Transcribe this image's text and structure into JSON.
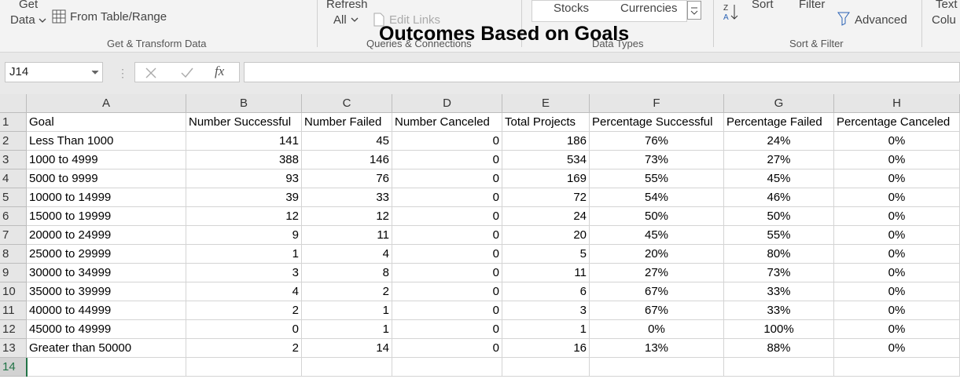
{
  "ribbon": {
    "get": "Get",
    "data": "Data",
    "from_table": "From Table/Range",
    "group_get": "Get & Transform Data",
    "refresh": "Refresh",
    "all": "All",
    "edit_links": "Edit Links",
    "group_queries": "Queries & Connections",
    "stocks": "Stocks",
    "currencies": "Currencies",
    "group_types": "Data Types",
    "sort": "Sort",
    "filter": "Filter",
    "advanced": "Advanced",
    "group_sort": "Sort & Filter",
    "text": "Text",
    "colu": "Colu"
  },
  "title": "Outcomes Based on Goals",
  "name_box": "J14",
  "formula_icon": "fx",
  "sheet": {
    "columns": [
      "A",
      "B",
      "C",
      "D",
      "E",
      "F",
      "G",
      "H"
    ],
    "row_numbers": [
      1,
      2,
      3,
      4,
      5,
      6,
      7,
      8,
      9,
      10,
      11,
      12,
      13,
      14
    ],
    "rows": [
      [
        "Goal",
        "Number Successful",
        "Number Failed",
        "Number Canceled",
        "Total Projects",
        "Percentage Successful",
        "Percentage Failed",
        "Percentage Canceled"
      ],
      [
        "Less Than 1000",
        "141",
        "45",
        "0",
        "186",
        "76%",
        "24%",
        "0%"
      ],
      [
        "1000 to 4999",
        "388",
        "146",
        "0",
        "534",
        "73%",
        "27%",
        "0%"
      ],
      [
        "5000 to 9999",
        "93",
        "76",
        "0",
        "169",
        "55%",
        "45%",
        "0%"
      ],
      [
        "10000 to 14999",
        "39",
        "33",
        "0",
        "72",
        "54%",
        "46%",
        "0%"
      ],
      [
        "15000 to 19999",
        "12",
        "12",
        "0",
        "24",
        "50%",
        "50%",
        "0%"
      ],
      [
        "20000 to 24999",
        "9",
        "11",
        "0",
        "20",
        "45%",
        "55%",
        "0%"
      ],
      [
        "25000 to 29999",
        "1",
        "4",
        "0",
        "5",
        "20%",
        "80%",
        "0%"
      ],
      [
        "30000 to 34999",
        "3",
        "8",
        "0",
        "11",
        "27%",
        "73%",
        "0%"
      ],
      [
        "35000 to 39999",
        "4",
        "2",
        "0",
        "6",
        "67%",
        "33%",
        "0%"
      ],
      [
        "40000 to 44999",
        "2",
        "1",
        "0",
        "3",
        "67%",
        "33%",
        "0%"
      ],
      [
        "45000 to 49999",
        "0",
        "1",
        "0",
        "1",
        "0%",
        "100%",
        "0%"
      ],
      [
        "Greater than 50000",
        "2",
        "14",
        "0",
        "16",
        "13%",
        "88%",
        "0%"
      ]
    ]
  }
}
